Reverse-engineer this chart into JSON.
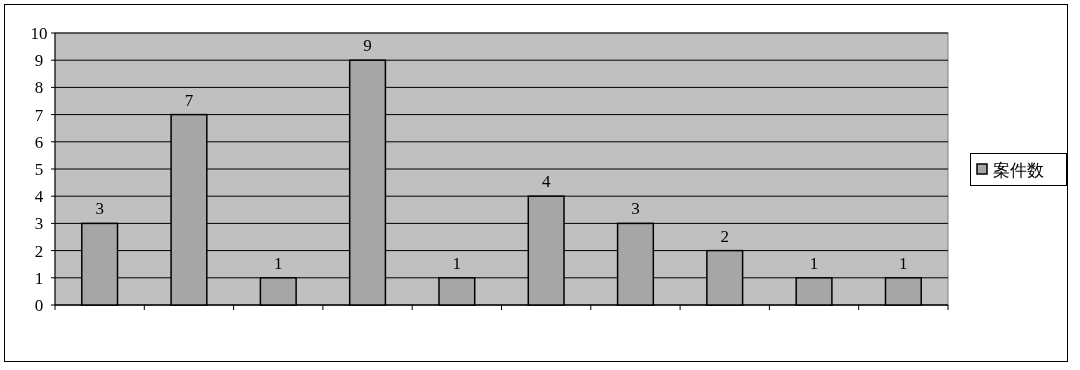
{
  "chart_data": {
    "type": "bar",
    "categories": [
      null,
      null,
      null,
      null,
      null,
      null,
      null,
      null,
      null,
      null
    ],
    "series": [
      {
        "name": "案件数",
        "color": "#a6a6a6",
        "values": [
          3,
          7,
          1,
          9,
          1,
          4,
          3,
          2,
          1,
          1
        ]
      }
    ],
    "ylim": [
      0,
      10
    ],
    "yticks": [
      0,
      1,
      2,
      3,
      4,
      5,
      6,
      7,
      8,
      9,
      10
    ],
    "grid": "y",
    "legend": "right",
    "data_labels": true
  }
}
